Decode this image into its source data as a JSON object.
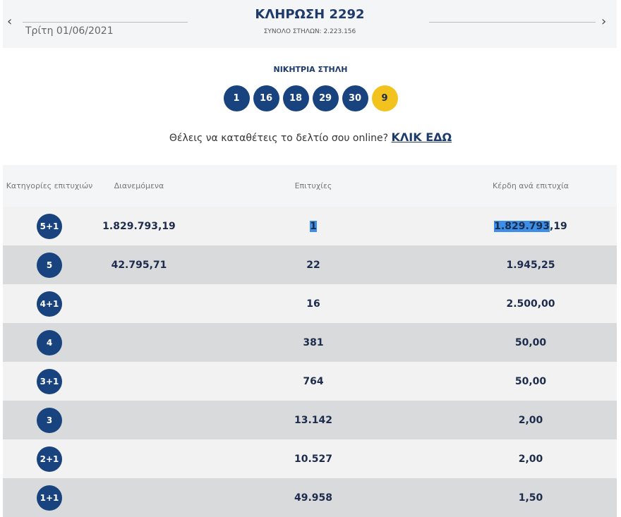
{
  "header": {
    "title": "ΚΛΗΡΩΣΗ 2292",
    "date": "Τρίτη 01/06/2021",
    "total_columns": "ΣΥΝΟΛΟ ΣΤΗΛΩΝ: 2.223.156",
    "prev_icon": "chevron-left-icon",
    "next_icon": "chevron-right-icon"
  },
  "winning": {
    "label": "ΝΙΚΗΤΡΙΑ ΣΤΗΛΗ",
    "numbers": [
      "1",
      "16",
      "18",
      "29",
      "30"
    ],
    "joker": "9",
    "colors": {
      "ball": "#18437e",
      "joker": "#f3c31d"
    }
  },
  "online": {
    "text": "Θέλεις να καταθέτεις το δελτίο σου online?",
    "link": "ΚΛΙΚ ΕΔΩ"
  },
  "table": {
    "headers": [
      "Κατηγορίες επιτυχιών",
      "Διανεμόμενα",
      "Επιτυχίες",
      "Κέρδη ανά επιτυχία"
    ],
    "rows": [
      {
        "cat": "5+1",
        "dist": "1.829.793,19",
        "wins": "1",
        "prize": "1.829.793,19"
      },
      {
        "cat": "5",
        "dist": "42.795,71",
        "wins": "22",
        "prize": "1.945,25"
      },
      {
        "cat": "4+1",
        "dist": "",
        "wins": "16",
        "prize": "2.500,00"
      },
      {
        "cat": "4",
        "dist": "",
        "wins": "381",
        "prize": "50,00"
      },
      {
        "cat": "3+1",
        "dist": "",
        "wins": "764",
        "prize": "50,00"
      },
      {
        "cat": "3",
        "dist": "",
        "wins": "13.142",
        "prize": "2,00"
      },
      {
        "cat": "2+1",
        "dist": "",
        "wins": "10.527",
        "prize": "2,00"
      },
      {
        "cat": "1+1",
        "dist": "",
        "wins": "49.958",
        "prize": "1,50"
      }
    ]
  }
}
